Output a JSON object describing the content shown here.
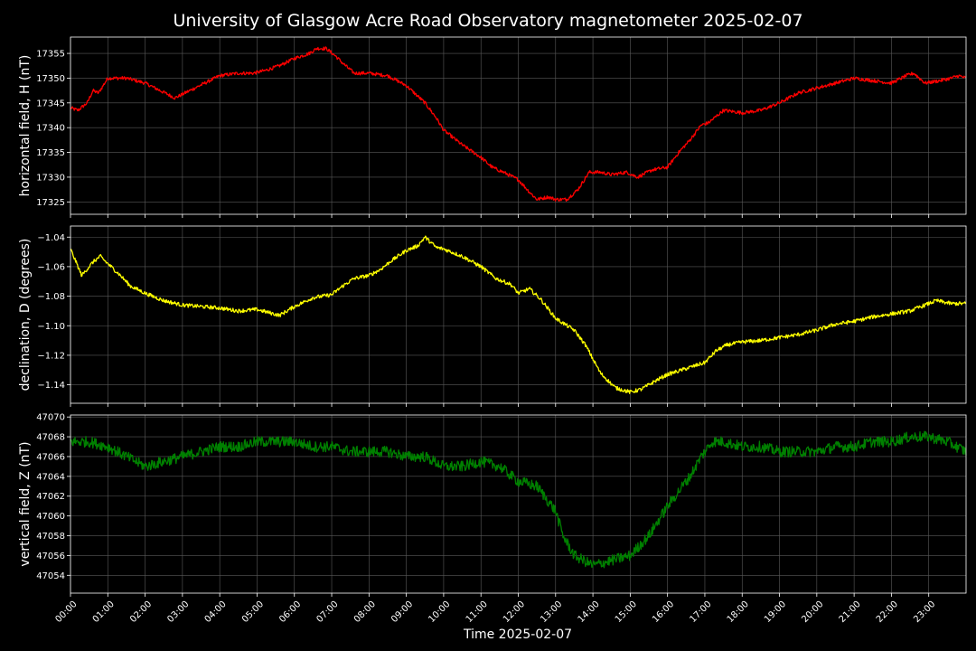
{
  "figure": {
    "title": "University of Glasgow Acre Road Observatory magnetometer 2025-02-07",
    "xlabel": "Time 2025-02-07",
    "background": "#000000",
    "grid_color": "#5a5a5a",
    "text_color": "#ffffff"
  },
  "chart_data": [
    {
      "type": "line",
      "series": [
        {
          "name": "",
          "color": "#ff0000",
          "noise": 0.35,
          "x": [
            0,
            0.2,
            0.45,
            0.6,
            0.75,
            1.0,
            1.5,
            2.0,
            2.4,
            2.8,
            3.2,
            3.6,
            4.0,
            4.5,
            4.9,
            5.2,
            5.6,
            6.0,
            6.4,
            6.6,
            6.85,
            7.1,
            7.3,
            7.6,
            8.0,
            8.5,
            9.0,
            9.5,
            9.8,
            10.0,
            10.5,
            11.0,
            11.3,
            11.6,
            12.0,
            12.3,
            12.5,
            12.8,
            13.0,
            13.3,
            13.6,
            13.9,
            14.2,
            14.5,
            14.9,
            15.2,
            15.6,
            16.0,
            16.3,
            16.6,
            16.9,
            17.1,
            17.5,
            18.0,
            18.5,
            19.0,
            19.5,
            20.0,
            20.5,
            21.0,
            21.5,
            22.0,
            22.4,
            22.6,
            22.9,
            23.3,
            23.6,
            23.8,
            24.0
          ],
          "y": [
            17344,
            17343.5,
            17345,
            17347.5,
            17347,
            17350,
            17350,
            17349,
            17347.5,
            17346,
            17347.5,
            17349,
            17350.5,
            17351,
            17351,
            17351.5,
            17352.5,
            17354,
            17355,
            17356,
            17356,
            17354.5,
            17353,
            17351,
            17351,
            17350.5,
            17348.5,
            17345,
            17342,
            17339.5,
            17336.5,
            17334,
            17332,
            17331,
            17329.5,
            17327,
            17325.5,
            17326,
            17325.5,
            17325.5,
            17327.5,
            17331,
            17331,
            17330.5,
            17331,
            17330,
            17331.5,
            17332,
            17335,
            17337.5,
            17340.5,
            17341,
            17343.5,
            17343,
            17343.5,
            17345,
            17347,
            17348,
            17349,
            17350,
            17349.5,
            17349,
            17350.5,
            17351,
            17349,
            17349.5,
            17350,
            17350.5,
            17350
          ]
        }
      ],
      "ylabel": "horizontal field, H (nT)",
      "ylim": [
        17322.5,
        17358.3
      ],
      "yticks": [
        17325,
        17330,
        17335,
        17340,
        17345,
        17350,
        17355
      ],
      "ytick_labels": [
        "17325",
        "17330",
        "17335",
        "17340",
        "17345",
        "17350",
        "17355"
      ]
    },
    {
      "type": "line",
      "series": [
        {
          "name": "",
          "color": "#ffff00",
          "noise": 0.0013,
          "x": [
            0,
            0.15,
            0.3,
            0.6,
            0.8,
            1.0,
            1.3,
            1.6,
            2.0,
            2.5,
            3.0,
            3.5,
            4.0,
            4.5,
            5.0,
            5.3,
            5.6,
            6.0,
            6.5,
            7.0,
            7.3,
            7.6,
            8.0,
            8.3,
            8.6,
            9.0,
            9.3,
            9.5,
            9.8,
            10.0,
            10.5,
            11.0,
            11.4,
            11.8,
            12.0,
            12.3,
            12.6,
            13.0,
            13.5,
            13.8,
            14.2,
            14.6,
            15.0,
            15.3,
            15.7,
            16.0,
            16.5,
            17.0,
            17.3,
            17.6,
            18.0,
            18.5,
            19.0,
            19.5,
            20.0,
            20.5,
            21.0,
            21.5,
            22.0,
            22.5,
            22.8,
            23.2,
            23.6,
            24.0
          ],
          "y": [
            -1.048,
            -1.057,
            -1.066,
            -1.057,
            -1.053,
            -1.058,
            -1.065,
            -1.073,
            -1.078,
            -1.083,
            -1.086,
            -1.087,
            -1.088,
            -1.09,
            -1.089,
            -1.091,
            -1.093,
            -1.087,
            -1.081,
            -1.079,
            -1.073,
            -1.068,
            -1.066,
            -1.062,
            -1.056,
            -1.049,
            -1.046,
            -1.04,
            -1.047,
            -1.048,
            -1.053,
            -1.06,
            -1.068,
            -1.072,
            -1.078,
            -1.075,
            -1.082,
            -1.095,
            -1.103,
            -1.113,
            -1.132,
            -1.142,
            -1.145,
            -1.143,
            -1.137,
            -1.133,
            -1.129,
            -1.125,
            -1.117,
            -1.113,
            -1.111,
            -1.11,
            -1.108,
            -1.106,
            -1.103,
            -1.099,
            -1.097,
            -1.094,
            -1.092,
            -1.09,
            -1.087,
            -1.083,
            -1.085,
            -1.085
          ]
        }
      ],
      "ylabel": "declination, D (degrees)",
      "ylim": [
        -1.1525,
        -1.0325
      ],
      "yticks": [
        -1.14,
        -1.12,
        -1.1,
        -1.08,
        -1.06,
        -1.04
      ],
      "ytick_labels": [
        "−1.14",
        "−1.12",
        "−1.10",
        "−1.08",
        "−1.06",
        "−1.04"
      ]
    },
    {
      "type": "line",
      "series": [
        {
          "name": "",
          "color": "#008000",
          "noise": 0.55,
          "x": [
            0,
            0.5,
            1.0,
            1.5,
            2.0,
            2.5,
            3.0,
            3.5,
            4.0,
            4.5,
            5.0,
            5.5,
            6.0,
            6.5,
            7.0,
            7.5,
            8.0,
            8.5,
            9.0,
            9.5,
            10.0,
            10.5,
            11.0,
            11.5,
            12.0,
            12.5,
            13.0,
            13.2,
            13.5,
            14.0,
            14.5,
            15.0,
            15.5,
            16.0,
            16.3,
            16.6,
            16.9,
            17.2,
            17.5,
            18.0,
            18.5,
            19.0,
            19.5,
            20.0,
            20.5,
            21.0,
            21.5,
            22.0,
            22.5,
            23.0,
            23.5,
            24.0
          ],
          "y": [
            47067.5,
            47067.5,
            47067,
            47066,
            47065,
            47065.5,
            47066,
            47066.5,
            47067,
            47067,
            47067.5,
            47067.5,
            47067.5,
            47067,
            47067,
            47066.5,
            47066.5,
            47066.5,
            47066,
            47066,
            47065,
            47065,
            47065.5,
            47065,
            47063.5,
            47063,
            47060.5,
            47058,
            47056,
            47055,
            47055.5,
            47056,
            47058,
            47061,
            47062.5,
            47064,
            47066,
            47067.5,
            47067.5,
            47067,
            47067,
            47066.5,
            47066.5,
            47066.5,
            47067,
            47067,
            47067.5,
            47067.5,
            47068,
            47068,
            47067.5,
            47066.5
          ]
        }
      ],
      "ylabel": "vertical field, Z (nT)",
      "ylim": [
        47052.2,
        47070.2
      ],
      "yticks": [
        47054,
        47056,
        47058,
        47060,
        47062,
        47064,
        47066,
        47068,
        47070
      ],
      "ytick_labels": [
        "47054",
        "47056",
        "47058",
        "47060",
        "47062",
        "47064",
        "47066",
        "47068",
        "47070"
      ]
    }
  ],
  "x_axis": {
    "xlim": [
      0,
      24
    ],
    "ticks": [
      0,
      1,
      2,
      3,
      4,
      5,
      6,
      7,
      8,
      9,
      10,
      11,
      12,
      13,
      14,
      15,
      16,
      17,
      18,
      19,
      20,
      21,
      22,
      23
    ],
    "tick_labels": [
      "00:00",
      "01:00",
      "02:00",
      "03:00",
      "04:00",
      "05:00",
      "06:00",
      "07:00",
      "08:00",
      "09:00",
      "10:00",
      "11:00",
      "12:00",
      "13:00",
      "14:00",
      "15:00",
      "16:00",
      "17:00",
      "18:00",
      "19:00",
      "20:00",
      "21:00",
      "22:00",
      "23:00"
    ]
  }
}
